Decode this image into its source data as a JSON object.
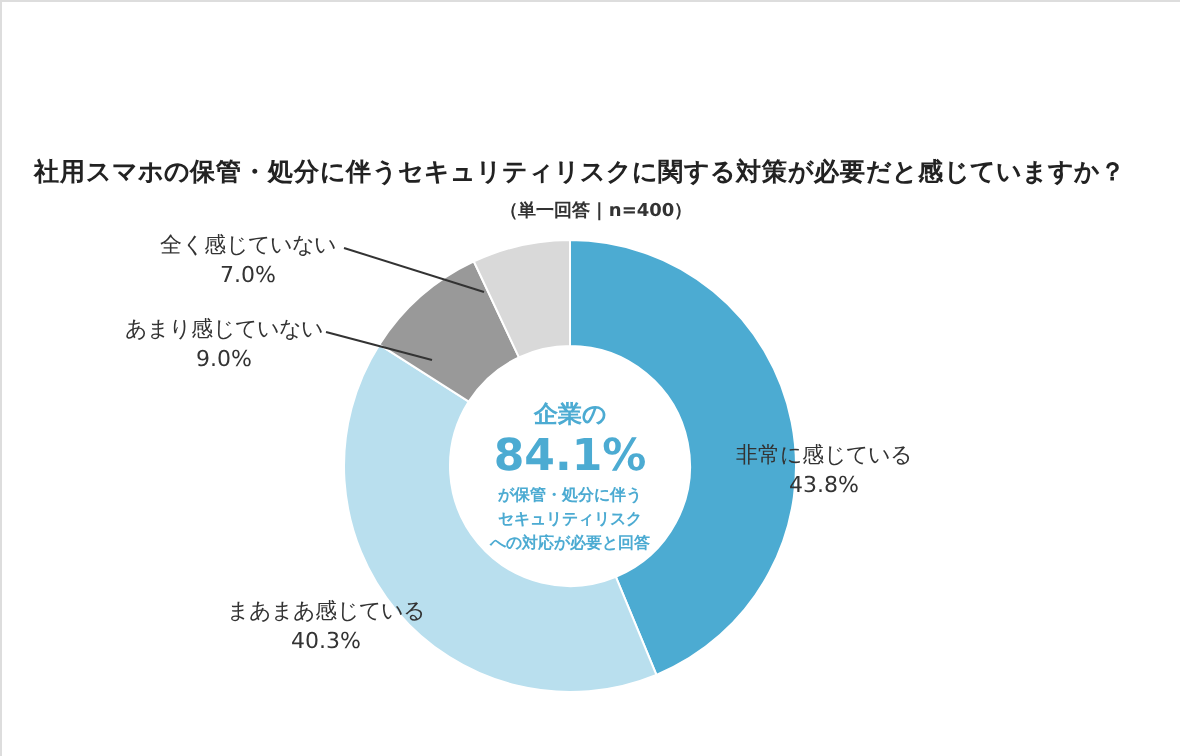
{
  "chart_data": {
    "type": "donut",
    "title": "社用スマホの保管・処分に伴うセキュリティリスクに関する対策が必要だと感じていますか？",
    "subtitle": "（単一回答 | n=400）",
    "categories": [
      "非常に感じている",
      "まあまあ感じている",
      "あまり感じていない",
      "全く感じていない"
    ],
    "values": [
      43.8,
      40.3,
      9.0,
      7.0
    ],
    "value_labels": [
      "43.8%",
      "40.3%",
      "9.0%",
      "7.0%"
    ],
    "colors": [
      "#4cabd2",
      "#b9dfee",
      "#999999",
      "#d9d9d9"
    ],
    "annotations": [
      "企業の",
      "84.1%",
      "が保管・処分に伴う",
      "セキュリティリスク",
      "への対応が必要と回答"
    ]
  }
}
